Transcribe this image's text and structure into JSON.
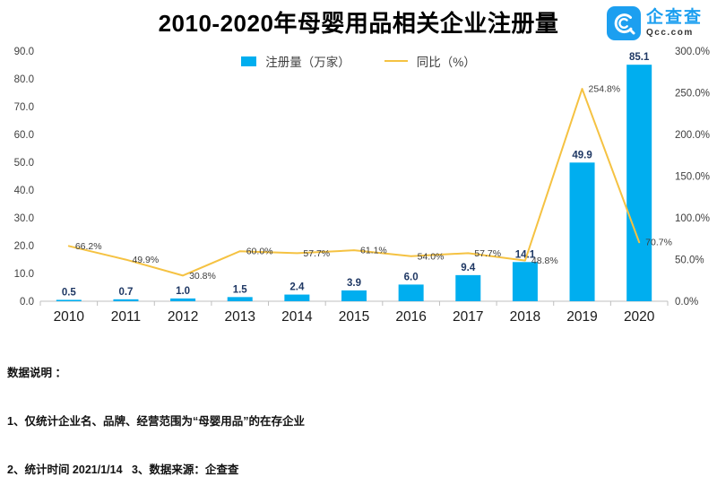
{
  "header": {
    "title": "2010-2020年母婴用品相关企业注册量",
    "logo": {
      "brand": "企查查",
      "domain": "Qcc.com"
    }
  },
  "legend": {
    "bar_label": "注册量（万家）",
    "line_label": "同比（%）"
  },
  "chart_data": {
    "type": "bar",
    "title": "2010-2020年母婴用品相关企业注册量",
    "categories": [
      "2010",
      "2011",
      "2012",
      "2013",
      "2014",
      "2015",
      "2016",
      "2017",
      "2018",
      "2019",
      "2020"
    ],
    "series": [
      {
        "name": "注册量（万家）",
        "type": "bar",
        "axis": "left",
        "values": [
          0.5,
          0.7,
          1.0,
          1.5,
          2.4,
          3.9,
          6.0,
          9.4,
          14.1,
          49.9,
          85.1
        ],
        "color": "#00AEEF",
        "label_color": "#1F3864"
      },
      {
        "name": "同比（%）",
        "type": "line",
        "axis": "right",
        "values": [
          66.2,
          49.9,
          30.8,
          60.0,
          57.7,
          61.1,
          54.0,
          57.7,
          48.8,
          254.8,
          70.7
        ],
        "label_suffix": "%",
        "color": "#F5C242",
        "label_color": "#3d3d3d"
      }
    ],
    "left_axis": {
      "min": 0,
      "max": 90,
      "step": 10,
      "decimals": 1
    },
    "right_axis": {
      "min": 0,
      "max": 300,
      "step": 50,
      "decimals": 1,
      "suffix": "%"
    },
    "grid": false,
    "legend_position": "top",
    "axis_text_color": "#404040",
    "category_text_color": "#1a1a1a",
    "axis_line_color": "#BFBFBF"
  },
  "footer": {
    "heading": "数据说明 ：",
    "line2": "1、仅统计企业名、品牌、经营范围为“母婴用品”的在存企业",
    "line3": "2、统计时间 2021/1/14   3、数据来源：企查查"
  }
}
